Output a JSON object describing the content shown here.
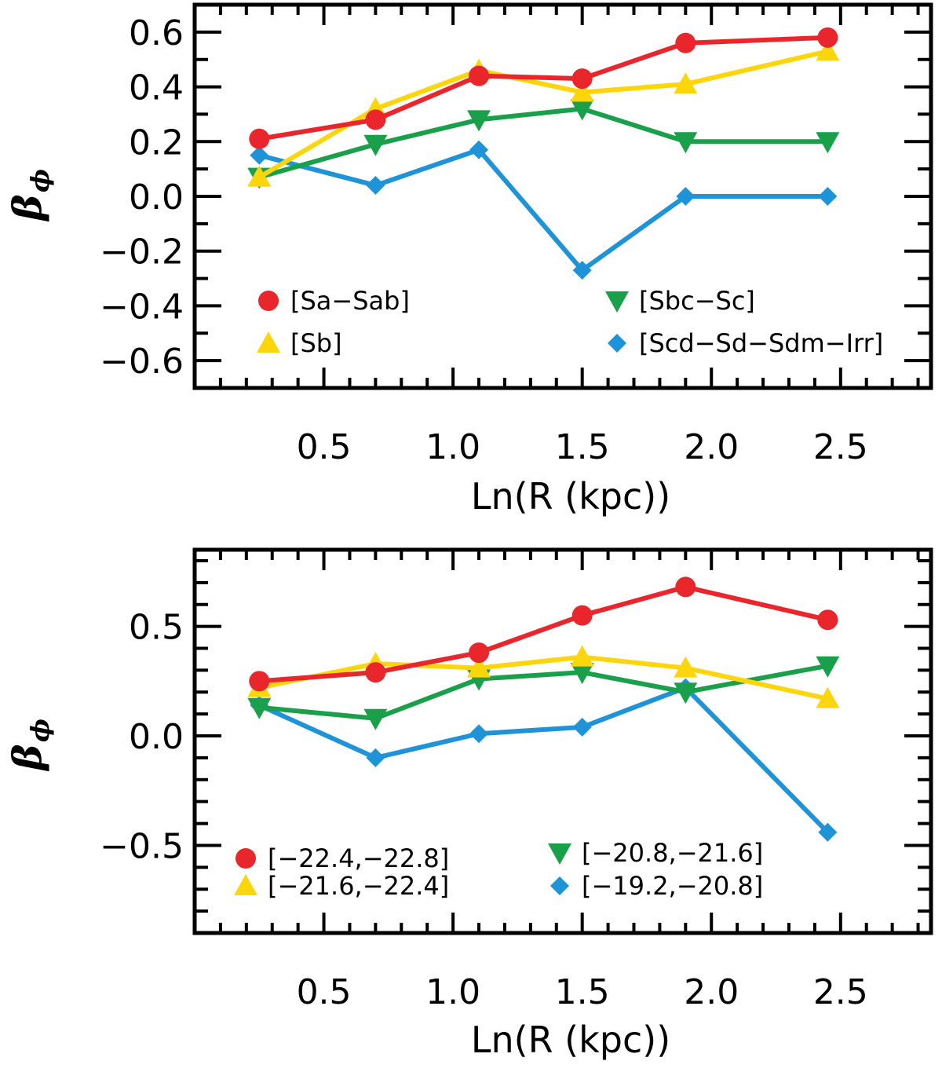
{
  "chart_data": [
    {
      "type": "line",
      "title": "",
      "xlabel": "Ln(R (kpc))",
      "ylabel": "β",
      "ylabel_subscript": "ϕ",
      "xlim": [
        0.0,
        2.85
      ],
      "ylim": [
        -0.7,
        0.7
      ],
      "x_ticks": [
        0.5,
        1.0,
        1.5,
        2.0,
        2.5
      ],
      "x_tick_labels": [
        "0.5",
        "1.0",
        "1.5",
        "2.0",
        "2.5"
      ],
      "y_ticks": [
        -0.6,
        -0.4,
        -0.2,
        0.0,
        0.2,
        0.4,
        0.6
      ],
      "y_tick_labels": [
        "−0.6",
        "−0.4",
        "−0.2",
        "0.0",
        "0.2",
        "0.4",
        "0.6"
      ],
      "x": [
        0.25,
        0.7,
        1.1,
        1.5,
        1.9,
        2.45
      ],
      "series": [
        {
          "name": "[Sa−Sab]",
          "color": "#e8262b",
          "marker": "circle",
          "values": [
            0.21,
            0.28,
            0.44,
            0.43,
            0.56,
            0.58
          ]
        },
        {
          "name": "[Sb]",
          "color": "#fcd60a",
          "marker": "triangle-up",
          "values": [
            0.07,
            0.32,
            0.46,
            0.38,
            0.41,
            0.53
          ]
        },
        {
          "name": "[Sbc−Sc]",
          "color": "#1aa04b",
          "marker": "triangle-down",
          "values": [
            0.07,
            0.19,
            0.28,
            0.32,
            0.2,
            0.2
          ]
        },
        {
          "name": "[Scd−Sd−Sdm−Irr]",
          "color": "#1e93d8",
          "marker": "diamond",
          "values": [
            0.15,
            0.04,
            0.17,
            -0.27,
            0.0,
            0.0
          ]
        }
      ]
    },
    {
      "type": "line",
      "title": "",
      "xlabel": "Ln(R (kpc))",
      "ylabel": "β",
      "ylabel_subscript": "ϕ",
      "xlim": [
        0.0,
        2.85
      ],
      "ylim": [
        -0.9,
        0.85
      ],
      "x_ticks": [
        0.5,
        1.0,
        1.5,
        2.0,
        2.5
      ],
      "x_tick_labels": [
        "0.5",
        "1.0",
        "1.5",
        "2.0",
        "2.5"
      ],
      "y_ticks": [
        -0.5,
        0.0,
        0.5
      ],
      "y_tick_labels": [
        "−0.5",
        "0.0",
        "0.5"
      ],
      "x": [
        0.25,
        0.7,
        1.1,
        1.5,
        1.9,
        2.45
      ],
      "series": [
        {
          "name": "[−22.4,−22.8]",
          "color": "#e8262b",
          "marker": "circle",
          "values": [
            0.25,
            0.29,
            0.38,
            0.55,
            0.68,
            0.53
          ]
        },
        {
          "name": "[−21.6,−22.4]",
          "color": "#fcd60a",
          "marker": "triangle-up",
          "values": [
            0.22,
            0.33,
            0.31,
            0.36,
            0.31,
            0.17
          ]
        },
        {
          "name": "[−20.8,−21.6]",
          "color": "#1aa04b",
          "marker": "triangle-down",
          "values": [
            0.13,
            0.08,
            0.26,
            0.29,
            0.2,
            0.32
          ]
        },
        {
          "name": "[−19.2,−20.8]",
          "color": "#1e93d8",
          "marker": "diamond",
          "values": [
            0.14,
            -0.1,
            0.01,
            0.04,
            0.22,
            -0.44
          ]
        }
      ]
    }
  ]
}
